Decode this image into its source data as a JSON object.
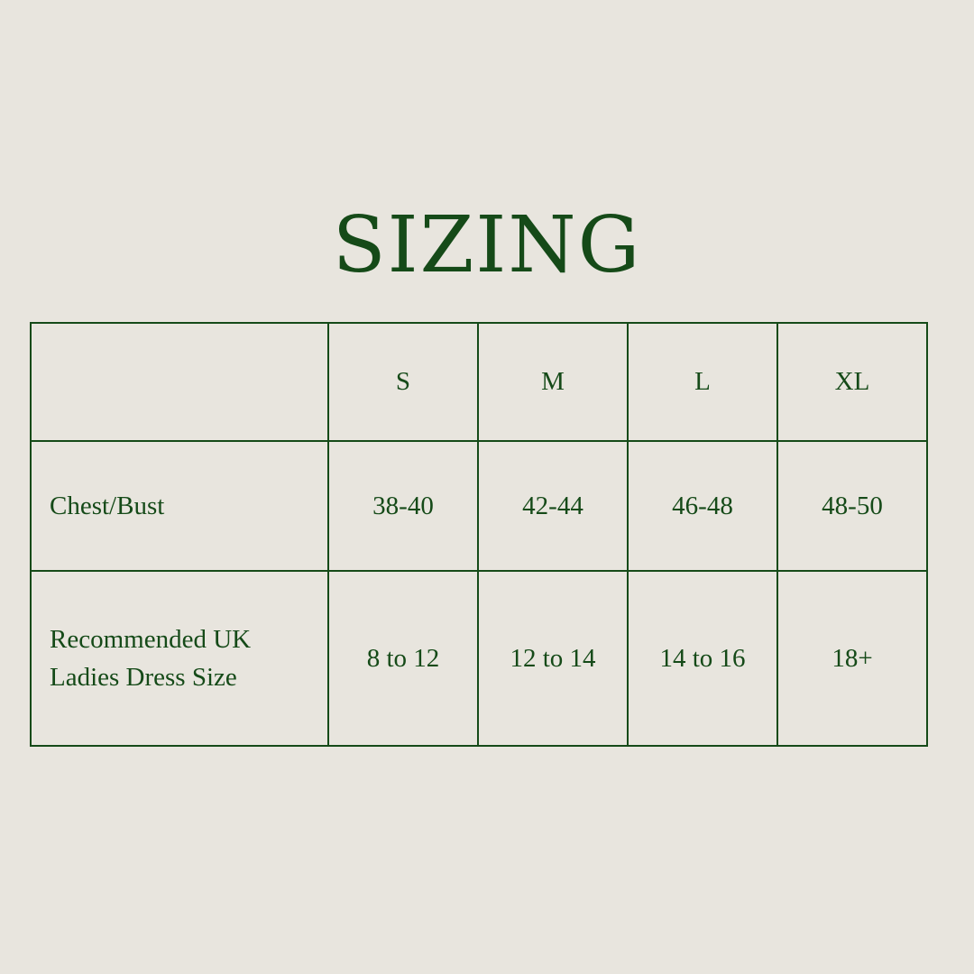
{
  "title": "SIZING",
  "colors": {
    "background": "#e8e5de",
    "accent": "#154a18"
  },
  "table": {
    "headers": [
      "",
      "S",
      "M",
      "L",
      "XL"
    ],
    "rows": [
      {
        "label": "Chest/Bust",
        "values": [
          "38-40",
          "42-44",
          "46-48",
          "48-50"
        ]
      },
      {
        "label_lines": [
          "Recommended UK",
          "Ladies Dress Size"
        ],
        "values": [
          "8 to 12",
          "12 to 14",
          "14 to 16",
          "18+"
        ]
      }
    ]
  }
}
